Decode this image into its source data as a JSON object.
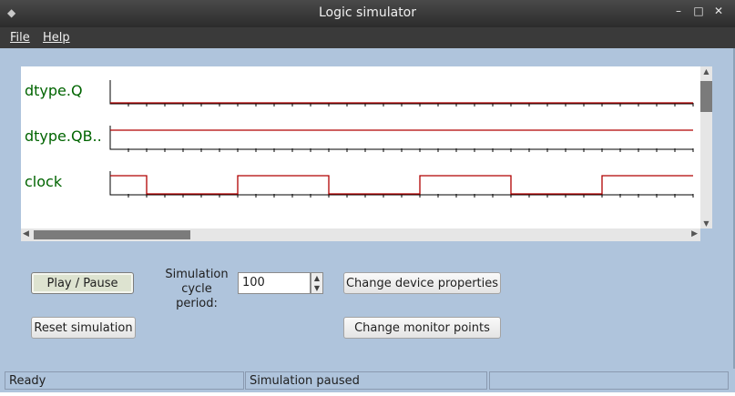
{
  "window": {
    "title": "Logic simulator",
    "controls": [
      "minimize-icon",
      "maximize-icon",
      "close-icon"
    ]
  },
  "menu": {
    "file": "File",
    "help": "Help"
  },
  "signals": [
    {
      "name": "dtype.Q",
      "levels": [
        0,
        0,
        0,
        0,
        0,
        0,
        0,
        0,
        0,
        0,
        0,
        0,
        0,
        0,
        0,
        0,
        0,
        0,
        0,
        0,
        0,
        0,
        0,
        0,
        0,
        0,
        0,
        0,
        0,
        0,
        0,
        0
      ]
    },
    {
      "name": "dtype.QB..",
      "levels": [
        1,
        1,
        1,
        1,
        1,
        1,
        1,
        1,
        1,
        1,
        1,
        1,
        1,
        1,
        1,
        1,
        1,
        1,
        1,
        1,
        1,
        1,
        1,
        1,
        1,
        1,
        1,
        1,
        1,
        1,
        1,
        1
      ]
    },
    {
      "name": "clock",
      "levels": [
        1,
        1,
        0,
        0,
        0,
        0,
        0,
        1,
        1,
        1,
        1,
        1,
        0,
        0,
        0,
        0,
        0,
        1,
        1,
        1,
        1,
        1,
        0,
        0,
        0,
        0,
        0,
        1,
        1,
        1,
        1,
        1
      ]
    }
  ],
  "colors": {
    "trace": "#b00000",
    "label": "#006400",
    "axis": "#000000",
    "background": "#afc4dc"
  },
  "controls": {
    "play_pause": "Play / Pause",
    "reset": "Reset simulation",
    "cycle_label_line1": "Simulation",
    "cycle_label_line2": "cycle period:",
    "cycle_value": "100",
    "change_device": "Change device properties",
    "change_monitor": "Change monitor points"
  },
  "status": {
    "left": "Ready",
    "middle": "Simulation paused",
    "right": ""
  },
  "scroll": {
    "vertical_position": 0.1,
    "horizontal_position": 0.0
  }
}
